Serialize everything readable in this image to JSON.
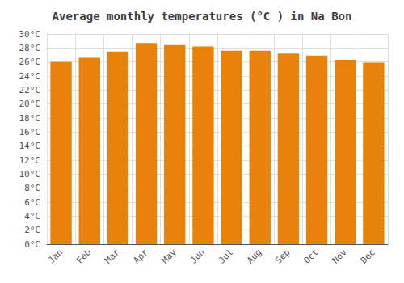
{
  "chart_data": {
    "type": "bar",
    "title": "Average monthly temperatures (°C ) in Na Bon",
    "categories": [
      "Jan",
      "Feb",
      "Mar",
      "Apr",
      "May",
      "Jun",
      "Jul",
      "Aug",
      "Sep",
      "Oct",
      "Nov",
      "Dec"
    ],
    "values": [
      26.0,
      26.6,
      27.5,
      28.7,
      28.4,
      28.2,
      27.6,
      27.6,
      27.2,
      26.9,
      26.3,
      25.9
    ],
    "color": "#E8820A",
    "ylim": [
      0,
      30
    ],
    "yticks": [
      {
        "value": 0,
        "label": "0°C"
      },
      {
        "value": 2,
        "label": "2°C"
      },
      {
        "value": 4,
        "label": "4°C"
      },
      {
        "value": 6,
        "label": "6°C"
      },
      {
        "value": 8,
        "label": "8°C"
      },
      {
        "value": 10,
        "label": "10°C"
      },
      {
        "value": 12,
        "label": "12°C"
      },
      {
        "value": 14,
        "label": "14°C"
      },
      {
        "value": 16,
        "label": "16°C"
      },
      {
        "value": 18,
        "label": "18°C"
      },
      {
        "value": 20,
        "label": "20°C"
      },
      {
        "value": 22,
        "label": "22°C"
      },
      {
        "value": 24,
        "label": "24°C"
      },
      {
        "value": 26,
        "label": "26°C"
      },
      {
        "value": 28,
        "label": "28°C"
      },
      {
        "value": 30,
        "label": "30°C"
      }
    ],
    "grid": true
  }
}
